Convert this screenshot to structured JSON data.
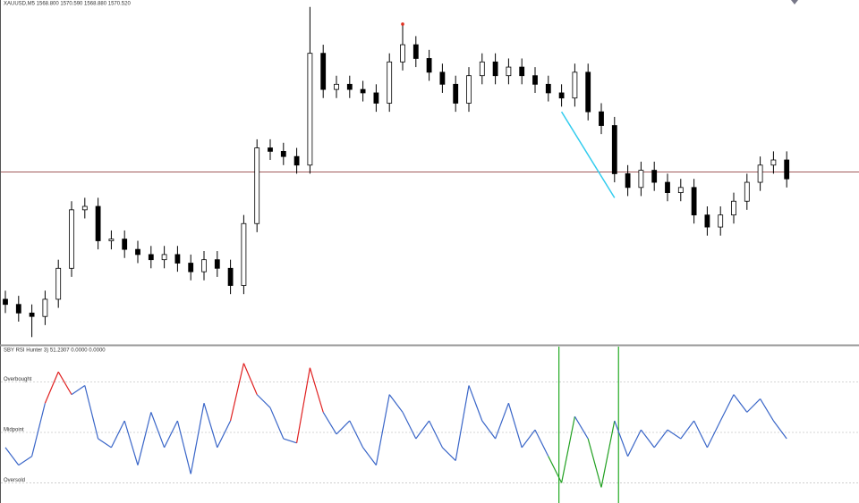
{
  "chart_data": [
    {
      "type": "candlestick",
      "title": "XAUUSD,M5 1568.800 1570.590 1568.880 1570.520",
      "ylim": [
        1560,
        1580
      ],
      "open": [
        1562.6,
        1562.3,
        1561.8,
        1561.6,
        1562.6,
        1564.4,
        1567.8,
        1568.0,
        1566.0,
        1566.1,
        1565.5,
        1565.2,
        1564.9,
        1565.2,
        1564.7,
        1564.2,
        1564.9,
        1564.4,
        1563.4,
        1567.0,
        1571.4,
        1571.2,
        1570.9,
        1570.4,
        1576.9,
        1574.8,
        1575.1,
        1574.8,
        1574.6,
        1574.0,
        1576.4,
        1577.4,
        1576.6,
        1575.8,
        1575.1,
        1574.0,
        1575.6,
        1576.4,
        1575.6,
        1576.1,
        1575.6,
        1575.1,
        1574.6,
        1574.3,
        1575.8,
        1573.5,
        1572.7,
        1569.9,
        1569.1,
        1570.1,
        1569.4,
        1568.8,
        1569.1,
        1567.5,
        1566.8,
        1567.5,
        1568.3,
        1569.4,
        1570.4,
        1570.7
      ],
      "high": [
        1563.1,
        1562.8,
        1562.3,
        1563.1,
        1564.9,
        1568.3,
        1568.5,
        1568.5,
        1566.6,
        1566.6,
        1566.0,
        1565.7,
        1565.7,
        1565.7,
        1565.2,
        1565.4,
        1565.4,
        1564.9,
        1567.5,
        1571.9,
        1571.9,
        1571.7,
        1571.4,
        1579.6,
        1577.4,
        1575.6,
        1575.6,
        1575.3,
        1575.1,
        1576.9,
        1578.6,
        1577.9,
        1577.1,
        1576.3,
        1575.6,
        1576.1,
        1576.9,
        1576.9,
        1576.6,
        1576.6,
        1576.1,
        1575.6,
        1575.1,
        1576.3,
        1576.3,
        1574.0,
        1573.2,
        1570.4,
        1570.6,
        1570.6,
        1569.9,
        1569.6,
        1569.6,
        1568.0,
        1568.0,
        1568.8,
        1569.9,
        1570.9,
        1571.2,
        1571.2
      ],
      "low": [
        1561.8,
        1561.3,
        1560.4,
        1561.1,
        1562.1,
        1563.9,
        1567.3,
        1565.5,
        1565.5,
        1565.0,
        1564.7,
        1564.4,
        1564.4,
        1564.2,
        1563.7,
        1563.7,
        1563.9,
        1562.9,
        1562.9,
        1566.5,
        1570.7,
        1570.4,
        1569.9,
        1569.9,
        1574.3,
        1574.3,
        1574.3,
        1574.1,
        1573.5,
        1573.5,
        1575.9,
        1576.1,
        1575.3,
        1574.6,
        1573.5,
        1573.5,
        1575.1,
        1575.1,
        1575.1,
        1575.1,
        1574.6,
        1574.1,
        1573.8,
        1573.8,
        1573.0,
        1572.2,
        1569.4,
        1568.6,
        1568.6,
        1568.9,
        1568.3,
        1568.3,
        1567.0,
        1566.3,
        1566.3,
        1567.0,
        1567.8,
        1568.9,
        1569.9,
        1569.1
      ],
      "close": [
        1562.3,
        1561.8,
        1561.6,
        1562.6,
        1564.4,
        1567.8,
        1568.0,
        1566.0,
        1566.1,
        1565.5,
        1565.2,
        1564.9,
        1565.2,
        1564.7,
        1564.2,
        1564.9,
        1564.4,
        1563.4,
        1567.0,
        1571.4,
        1571.2,
        1570.9,
        1570.4,
        1576.9,
        1574.8,
        1575.1,
        1574.8,
        1574.6,
        1574.0,
        1576.4,
        1577.4,
        1576.6,
        1575.8,
        1575.1,
        1574.0,
        1575.6,
        1576.4,
        1575.6,
        1576.1,
        1575.6,
        1575.1,
        1574.6,
        1574.3,
        1575.8,
        1573.5,
        1572.7,
        1569.9,
        1569.1,
        1570.1,
        1569.4,
        1568.8,
        1569.1,
        1567.5,
        1566.8,
        1567.5,
        1568.3,
        1569.4,
        1570.4,
        1570.7,
        1569.6
      ],
      "up_color": "#ffffff",
      "down_color": "#000000",
      "wick_color": "#000000",
      "hline": {
        "value": 1570.0,
        "color": "#a05a5a"
      },
      "trendline": {
        "x": [
          42,
          46
        ],
        "values": [
          1573.5,
          1568.5
        ],
        "color": "#33ccee"
      },
      "marker": {
        "x": 30,
        "value": 1578.6,
        "color": "#e03020"
      }
    },
    {
      "type": "line",
      "title": "SBY RSI Hunter 3) 51.2307 0.0000 0.0000",
      "ylim": [
        22,
        84
      ],
      "levels": [
        {
          "value": 70,
          "label": "Overbought"
        },
        {
          "value": 50,
          "label": "Midpoint"
        },
        {
          "value": 30,
          "label": "Oversold"
        }
      ],
      "values": [
        44,
        37,
        40.5,
        61.6,
        74,
        65,
        68.6,
        47.5,
        44,
        54.6,
        37,
        58,
        44,
        54.6,
        33.5,
        61.6,
        44,
        54.6,
        77.4,
        65,
        59.8,
        47.5,
        45.8,
        75.6,
        58,
        49.3,
        54.6,
        44,
        37,
        65,
        58,
        47.5,
        54.6,
        44,
        38.8,
        68.6,
        54.6,
        47.5,
        61.6,
        44,
        51,
        40.5,
        30,
        56.3,
        47.5,
        28.2,
        54.6,
        40.5,
        51,
        44,
        51,
        47.5,
        54.6,
        44,
        54.6,
        65,
        58,
        63.3,
        54.6,
        47.5
      ],
      "color": "#3a66c8",
      "overbought_color": "#e02020",
      "oversold_color": "#20a020",
      "vlines": {
        "x": [
          41.8,
          46.3
        ],
        "color": "#22aa22"
      }
    }
  ]
}
